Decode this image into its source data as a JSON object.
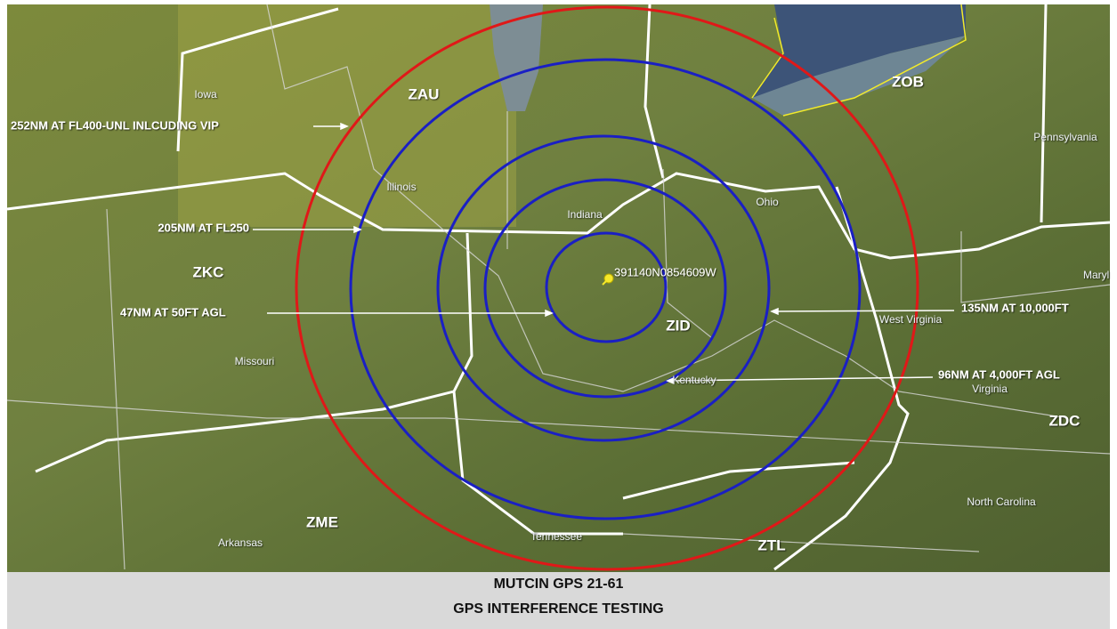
{
  "map": {
    "center_label": "391140N0854609W",
    "ring_labels": [
      "252NM AT FL400-UNL INLCUDING VIP",
      "205NM AT FL250",
      "47NM AT 50FT AGL",
      "135NM AT 10,000FT",
      "96NM AT 4,000FT AGL"
    ],
    "centers": [
      "ZAU",
      "ZOB",
      "ZKC",
      "ZID",
      "ZDC",
      "ZME",
      "ZTL"
    ],
    "states": [
      "Iowa",
      "Illinois",
      "Indiana",
      "Ohio",
      "Pennsylvania",
      "Maryl",
      "West Virginia",
      "Kentucky",
      "Virginia",
      "Missouri",
      "North Carolina",
      "Tennessee",
      "Arkansas"
    ]
  },
  "caption": {
    "line1": "MUTCIN GPS 21-61",
    "line2": "GPS INTERFERENCE TESTING"
  }
}
